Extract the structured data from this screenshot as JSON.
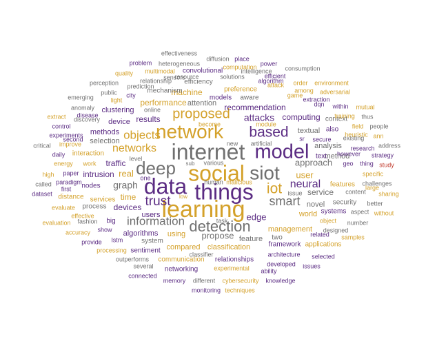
{
  "chart_data": {
    "type": "wordcloud",
    "colors": {
      "purple": "#5b2c83",
      "gold": "#d4a12a",
      "gray": "#707070",
      "red": "#c0392b"
    },
    "words": [
      {
        "text": "learning",
        "weight": 32,
        "color": "gold"
      },
      {
        "text": "social",
        "weight": 30,
        "color": "gold"
      },
      {
        "text": "internet",
        "weight": 30,
        "color": "gray"
      },
      {
        "text": "things",
        "weight": 30,
        "color": "purple"
      },
      {
        "text": "data",
        "weight": 30,
        "color": "purple"
      },
      {
        "text": "model",
        "weight": 27,
        "color": "purple"
      },
      {
        "text": "network",
        "weight": 26,
        "color": "gold"
      },
      {
        "text": "siot",
        "weight": 26,
        "color": "gray"
      },
      {
        "text": "deep",
        "weight": 24,
        "color": "gray"
      },
      {
        "text": "detection",
        "weight": 20,
        "color": "gray"
      },
      {
        "text": "based",
        "weight": 19,
        "color": "purple"
      },
      {
        "text": "iot",
        "weight": 19,
        "color": "gold"
      },
      {
        "text": "proposed",
        "weight": 18,
        "color": "gold"
      },
      {
        "text": "trust",
        "weight": 17,
        "color": "purple"
      },
      {
        "text": "smart",
        "weight": 16,
        "color": "gray"
      },
      {
        "text": "information",
        "weight": 15,
        "color": "gray"
      },
      {
        "text": "objects",
        "weight": 15,
        "color": "gold"
      },
      {
        "text": "neural",
        "weight": 14,
        "color": "purple"
      },
      {
        "text": "networks",
        "weight": 14,
        "color": "gold"
      },
      {
        "text": "attacks",
        "weight": 13,
        "color": "purple"
      },
      {
        "text": "graph",
        "weight": 13,
        "color": "gray"
      },
      {
        "text": "user",
        "weight": 12,
        "color": "gold"
      },
      {
        "text": "edge",
        "weight": 12,
        "color": "purple"
      },
      {
        "text": "approach",
        "weight": 12,
        "color": "gray"
      },
      {
        "text": "propose",
        "weight": 12,
        "color": "gray"
      },
      {
        "text": "real",
        "weight": 12,
        "color": "gold"
      },
      {
        "text": "results",
        "weight": 11,
        "color": "purple"
      },
      {
        "text": "recommendation",
        "weight": 11,
        "color": "purple"
      },
      {
        "text": "computing",
        "weight": 11,
        "color": "purple"
      },
      {
        "text": "service",
        "weight": 11,
        "color": "gray"
      },
      {
        "text": "performance",
        "weight": 11,
        "color": "gold"
      },
      {
        "text": "traffic",
        "weight": 11,
        "color": "purple"
      },
      {
        "text": "time",
        "weight": 11,
        "color": "gold"
      },
      {
        "text": "intrusion",
        "weight": 11,
        "color": "purple"
      },
      {
        "text": "devices",
        "weight": 11,
        "color": "purple"
      },
      {
        "text": "machine",
        "weight": 11,
        "color": "gold"
      },
      {
        "text": "attention",
        "weight": 10,
        "color": "gray"
      },
      {
        "text": "clustering",
        "weight": 10,
        "color": "purple"
      },
      {
        "text": "device",
        "weight": 10,
        "color": "purple"
      },
      {
        "text": "methods",
        "weight": 10,
        "color": "purple"
      },
      {
        "text": "selection",
        "weight": 10,
        "color": "gray"
      },
      {
        "text": "textual",
        "weight": 10,
        "color": "gray"
      },
      {
        "text": "method",
        "weight": 10,
        "color": "gray"
      },
      {
        "text": "analysis",
        "weight": 10,
        "color": "gray"
      },
      {
        "text": "world",
        "weight": 10,
        "color": "gold"
      },
      {
        "text": "novel",
        "weight": 10,
        "color": "gray"
      },
      {
        "text": "management",
        "weight": 10,
        "color": "gold"
      },
      {
        "text": "feature",
        "weight": 10,
        "color": "gray"
      },
      {
        "text": "algorithms",
        "weight": 10,
        "color": "purple"
      },
      {
        "text": "users",
        "weight": 10,
        "color": "purple"
      },
      {
        "text": "using",
        "weight": 10,
        "color": "gold"
      },
      {
        "text": "classification",
        "weight": 10,
        "color": "gold"
      },
      {
        "text": "compared",
        "weight": 10,
        "color": "gold"
      },
      {
        "text": "relationships",
        "weight": 9,
        "color": "purple"
      },
      {
        "text": "framework",
        "weight": 9,
        "color": "purple"
      },
      {
        "text": "applications",
        "weight": 9,
        "color": "gold"
      },
      {
        "text": "models",
        "weight": 9,
        "color": "purple"
      },
      {
        "text": "aware",
        "weight": 9,
        "color": "gray"
      },
      {
        "text": "preference",
        "weight": 9,
        "color": "gold"
      },
      {
        "text": "mechanism",
        "weight": 9,
        "color": "gray"
      },
      {
        "text": "efficiency",
        "weight": 9,
        "color": "gray"
      },
      {
        "text": "convolutional",
        "weight": 9,
        "color": "purple"
      },
      {
        "text": "interaction",
        "weight": 9,
        "color": "gold"
      },
      {
        "text": "nodes",
        "weight": 9,
        "color": "purple"
      },
      {
        "text": "services",
        "weight": 9,
        "color": "gold"
      },
      {
        "text": "process",
        "weight": 9,
        "color": "gray"
      },
      {
        "text": "features",
        "weight": 9,
        "color": "gold"
      },
      {
        "text": "security",
        "weight": 9,
        "color": "gray"
      },
      {
        "text": "systems",
        "weight": 9,
        "color": "purple"
      },
      {
        "text": "text",
        "weight": 9,
        "color": "purple"
      },
      {
        "text": "context",
        "weight": 9,
        "color": "gray"
      },
      {
        "text": "existing",
        "weight": 8,
        "color": "gray"
      },
      {
        "text": "sentiment",
        "weight": 9,
        "color": "purple"
      },
      {
        "text": "system",
        "weight": 9,
        "color": "gray"
      },
      {
        "text": "networking",
        "weight": 9,
        "color": "purple"
      },
      {
        "text": "communication",
        "weight": 9,
        "color": "gold"
      },
      {
        "text": "experimental",
        "weight": 8,
        "color": "gold"
      },
      {
        "text": "architecture",
        "weight": 8,
        "color": "purple"
      },
      {
        "text": "developed",
        "weight": 8,
        "color": "purple"
      },
      {
        "text": "related",
        "weight": 8,
        "color": "purple"
      },
      {
        "text": "designed",
        "weight": 8,
        "color": "gray"
      },
      {
        "text": "object",
        "weight": 8,
        "color": "gold"
      },
      {
        "text": "show",
        "weight": 8,
        "color": "purple"
      },
      {
        "text": "big",
        "weight": 9,
        "color": "purple"
      },
      {
        "text": "processing",
        "weight": 8,
        "color": "gold"
      },
      {
        "text": "lstm",
        "weight": 8,
        "color": "purple"
      },
      {
        "text": "outperforms",
        "weight": 8,
        "color": "gray"
      },
      {
        "text": "two",
        "weight": 9,
        "color": "gray"
      },
      {
        "text": "distance",
        "weight": 9,
        "color": "gold"
      },
      {
        "text": "online",
        "weight": 8,
        "color": "gray"
      },
      {
        "text": "become",
        "weight": 8,
        "color": "gold"
      },
      {
        "text": "module",
        "weight": 8,
        "color": "gold"
      },
      {
        "text": "dqn",
        "weight": 8,
        "color": "purple"
      },
      {
        "text": "extraction",
        "weight": 8,
        "color": "purple"
      },
      {
        "text": "game",
        "weight": 8,
        "color": "gold"
      },
      {
        "text": "among",
        "weight": 8,
        "color": "gold"
      },
      {
        "text": "adversarial",
        "weight": 8,
        "color": "gold"
      },
      {
        "text": "environment",
        "weight": 8,
        "color": "gold"
      },
      {
        "text": "order",
        "weight": 8,
        "color": "gold"
      },
      {
        "text": "attack",
        "weight": 8,
        "color": "gold"
      },
      {
        "text": "algorithm",
        "weight": 8,
        "color": "purple"
      },
      {
        "text": "efficient",
        "weight": 8,
        "color": "purple"
      },
      {
        "text": "power",
        "weight": 8,
        "color": "purple"
      },
      {
        "text": "consumption",
        "weight": 8,
        "color": "gray"
      },
      {
        "text": "intelligence",
        "weight": 8,
        "color": "gray"
      },
      {
        "text": "solutions",
        "weight": 8,
        "color": "gray"
      },
      {
        "text": "computation",
        "weight": 8,
        "color": "gold"
      },
      {
        "text": "place",
        "weight": 8,
        "color": "purple"
      },
      {
        "text": "diffusion",
        "weight": 8,
        "color": "gray"
      },
      {
        "text": "effectiveness",
        "weight": 8,
        "color": "gray"
      },
      {
        "text": "problem",
        "weight": 8,
        "color": "purple"
      },
      {
        "text": "heterogeneous",
        "weight": 8,
        "color": "gray"
      },
      {
        "text": "multimodal",
        "weight": 8,
        "color": "gold"
      },
      {
        "text": "sensors",
        "weight": 8,
        "color": "gray"
      },
      {
        "text": "quality",
        "weight": 8,
        "color": "gold"
      },
      {
        "text": "relationship",
        "weight": 8,
        "color": "gray"
      },
      {
        "text": "resource",
        "weight": 8,
        "color": "gray"
      },
      {
        "text": "prediction",
        "weight": 8,
        "color": "gray"
      },
      {
        "text": "perception",
        "weight": 8,
        "color": "gray"
      },
      {
        "text": "light",
        "weight": 8,
        "color": "gold"
      },
      {
        "text": "public",
        "weight": 8,
        "color": "gray"
      },
      {
        "text": "city",
        "weight": 8,
        "color": "purple"
      },
      {
        "text": "emerging",
        "weight": 8,
        "color": "gray"
      },
      {
        "text": "anomaly",
        "weight": 8,
        "color": "gray"
      },
      {
        "text": "disease",
        "weight": 8,
        "color": "purple"
      },
      {
        "text": "discovery",
        "weight": 8,
        "color": "gray"
      },
      {
        "text": "extract",
        "weight": 8,
        "color": "gold"
      },
      {
        "text": "control",
        "weight": 8,
        "color": "purple"
      },
      {
        "text": "experiments",
        "weight": 8,
        "color": "purple"
      },
      {
        "text": "second",
        "weight": 8,
        "color": "purple"
      },
      {
        "text": "improve",
        "weight": 8,
        "color": "gold"
      },
      {
        "text": "critical",
        "weight": 8,
        "color": "gray"
      },
      {
        "text": "daily",
        "weight": 8,
        "color": "purple"
      },
      {
        "text": "energy",
        "weight": 8,
        "color": "gold"
      },
      {
        "text": "work",
        "weight": 8,
        "color": "gold"
      },
      {
        "text": "high",
        "weight": 8,
        "color": "gold"
      },
      {
        "text": "paper",
        "weight": 8,
        "color": "purple"
      },
      {
        "text": "called",
        "weight": 8,
        "color": "gray"
      },
      {
        "text": "paradigm",
        "weight": 8,
        "color": "purple"
      },
      {
        "text": "first",
        "weight": 8,
        "color": "purple"
      },
      {
        "text": "dataset",
        "weight": 8,
        "color": "purple"
      },
      {
        "text": "evaluate",
        "weight": 8,
        "color": "gold"
      },
      {
        "text": "effective",
        "weight": 8,
        "color": "gold"
      },
      {
        "text": "fashion",
        "weight": 8,
        "color": "gray"
      },
      {
        "text": "evaluation",
        "weight": 8,
        "color": "gold"
      },
      {
        "text": "accuracy",
        "weight": 8,
        "color": "gold"
      },
      {
        "text": "provide",
        "weight": 8,
        "color": "purple"
      },
      {
        "text": "level",
        "weight": 8,
        "color": "gray"
      },
      {
        "text": "one",
        "weight": 8,
        "color": "purple"
      },
      {
        "text": "sub",
        "weight": 7,
        "color": "gray"
      },
      {
        "text": "various",
        "weight": 8,
        "color": "gray"
      },
      {
        "text": "low",
        "weight": 7,
        "color": "gold"
      },
      {
        "text": "new",
        "weight": 8,
        "color": "gray"
      },
      {
        "text": "artificial",
        "weight": 8,
        "color": "gray"
      },
      {
        "text": "malicious",
        "weight": 8,
        "color": "gold"
      },
      {
        "text": "human",
        "weight": 8,
        "color": "gray"
      },
      {
        "text": "task",
        "weight": 8,
        "color": "gray"
      },
      {
        "text": "issue",
        "weight": 8,
        "color": "gray"
      },
      {
        "text": "sr",
        "weight": 8,
        "color": "purple"
      },
      {
        "text": "secure",
        "weight": 8,
        "color": "purple"
      },
      {
        "text": "also",
        "weight": 9,
        "color": "purple"
      },
      {
        "text": "however",
        "weight": 8,
        "color": "purple"
      },
      {
        "text": "geo",
        "weight": 8,
        "color": "purple"
      },
      {
        "text": "content",
        "weight": 8,
        "color": "gray"
      },
      {
        "text": "within",
        "weight": 8,
        "color": "purple"
      },
      {
        "text": "training",
        "weight": 8,
        "color": "gold"
      },
      {
        "text": "thus",
        "weight": 8,
        "color": "gray"
      },
      {
        "text": "field",
        "weight": 8,
        "color": "gold"
      },
      {
        "text": "mutual",
        "weight": 8,
        "color": "gold"
      },
      {
        "text": "people",
        "weight": 8,
        "color": "gray"
      },
      {
        "text": "heuristic",
        "weight": 8,
        "color": "gold"
      },
      {
        "text": "ann",
        "weight": 8,
        "color": "gold"
      },
      {
        "text": "research",
        "weight": 8,
        "color": "purple"
      },
      {
        "text": "strategy",
        "weight": 8,
        "color": "purple"
      },
      {
        "text": "address",
        "weight": 8,
        "color": "gray"
      },
      {
        "text": "thing",
        "weight": 8,
        "color": "purple"
      },
      {
        "text": "study",
        "weight": 8,
        "color": "red"
      },
      {
        "text": "specific",
        "weight": 8,
        "color": "gold"
      },
      {
        "text": "challenges",
        "weight": 8,
        "color": "gray"
      },
      {
        "text": "large",
        "weight": 8,
        "color": "gold"
      },
      {
        "text": "sharing",
        "weight": 8,
        "color": "gold"
      },
      {
        "text": "aspect",
        "weight": 8,
        "color": "gray"
      },
      {
        "text": "better",
        "weight": 8,
        "color": "gray"
      },
      {
        "text": "without",
        "weight": 8,
        "color": "gold"
      },
      {
        "text": "number",
        "weight": 8,
        "color": "gray"
      },
      {
        "text": "samples",
        "weight": 8,
        "color": "gold"
      },
      {
        "text": "selected",
        "weight": 8,
        "color": "purple"
      },
      {
        "text": "issues",
        "weight": 8,
        "color": "purple"
      },
      {
        "text": "classifier",
        "weight": 8,
        "color": "gray"
      },
      {
        "text": "several",
        "weight": 8,
        "color": "gray"
      },
      {
        "text": "connected",
        "weight": 8,
        "color": "purple"
      },
      {
        "text": "memory",
        "weight": 8,
        "color": "purple"
      },
      {
        "text": "different",
        "weight": 8,
        "color": "gray"
      },
      {
        "text": "cybersecurity",
        "weight": 8,
        "color": "gold"
      },
      {
        "text": "ability",
        "weight": 8,
        "color": "purple"
      },
      {
        "text": "knowledge",
        "weight": 8,
        "color": "purple"
      },
      {
        "text": "monitoring",
        "weight": 8,
        "color": "purple"
      },
      {
        "text": "techniques",
        "weight": 8,
        "color": "gold"
      }
    ]
  }
}
